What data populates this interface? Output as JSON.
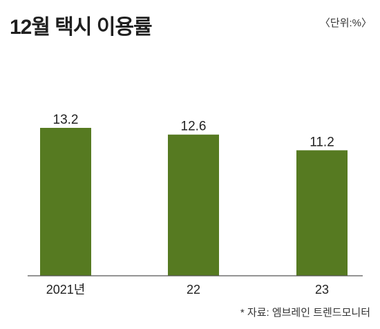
{
  "title": "12월 택시 이용률",
  "unit_label": "〈단위:%〉",
  "source": "* 자료: 엠브레인 트렌드모니터",
  "colors": {
    "bar": "#567a21",
    "axis": "#555555",
    "text": "#222222"
  },
  "chart_data": {
    "type": "bar",
    "categories": [
      "2021년",
      "22",
      "23"
    ],
    "values": [
      13.2,
      12.6,
      11.2
    ],
    "value_labels": [
      "13.2",
      "12.6",
      "11.2"
    ],
    "title": "12월 택시 이용률",
    "xlabel": "",
    "ylabel": "",
    "unit": "%",
    "grid": false,
    "legend": "none"
  }
}
